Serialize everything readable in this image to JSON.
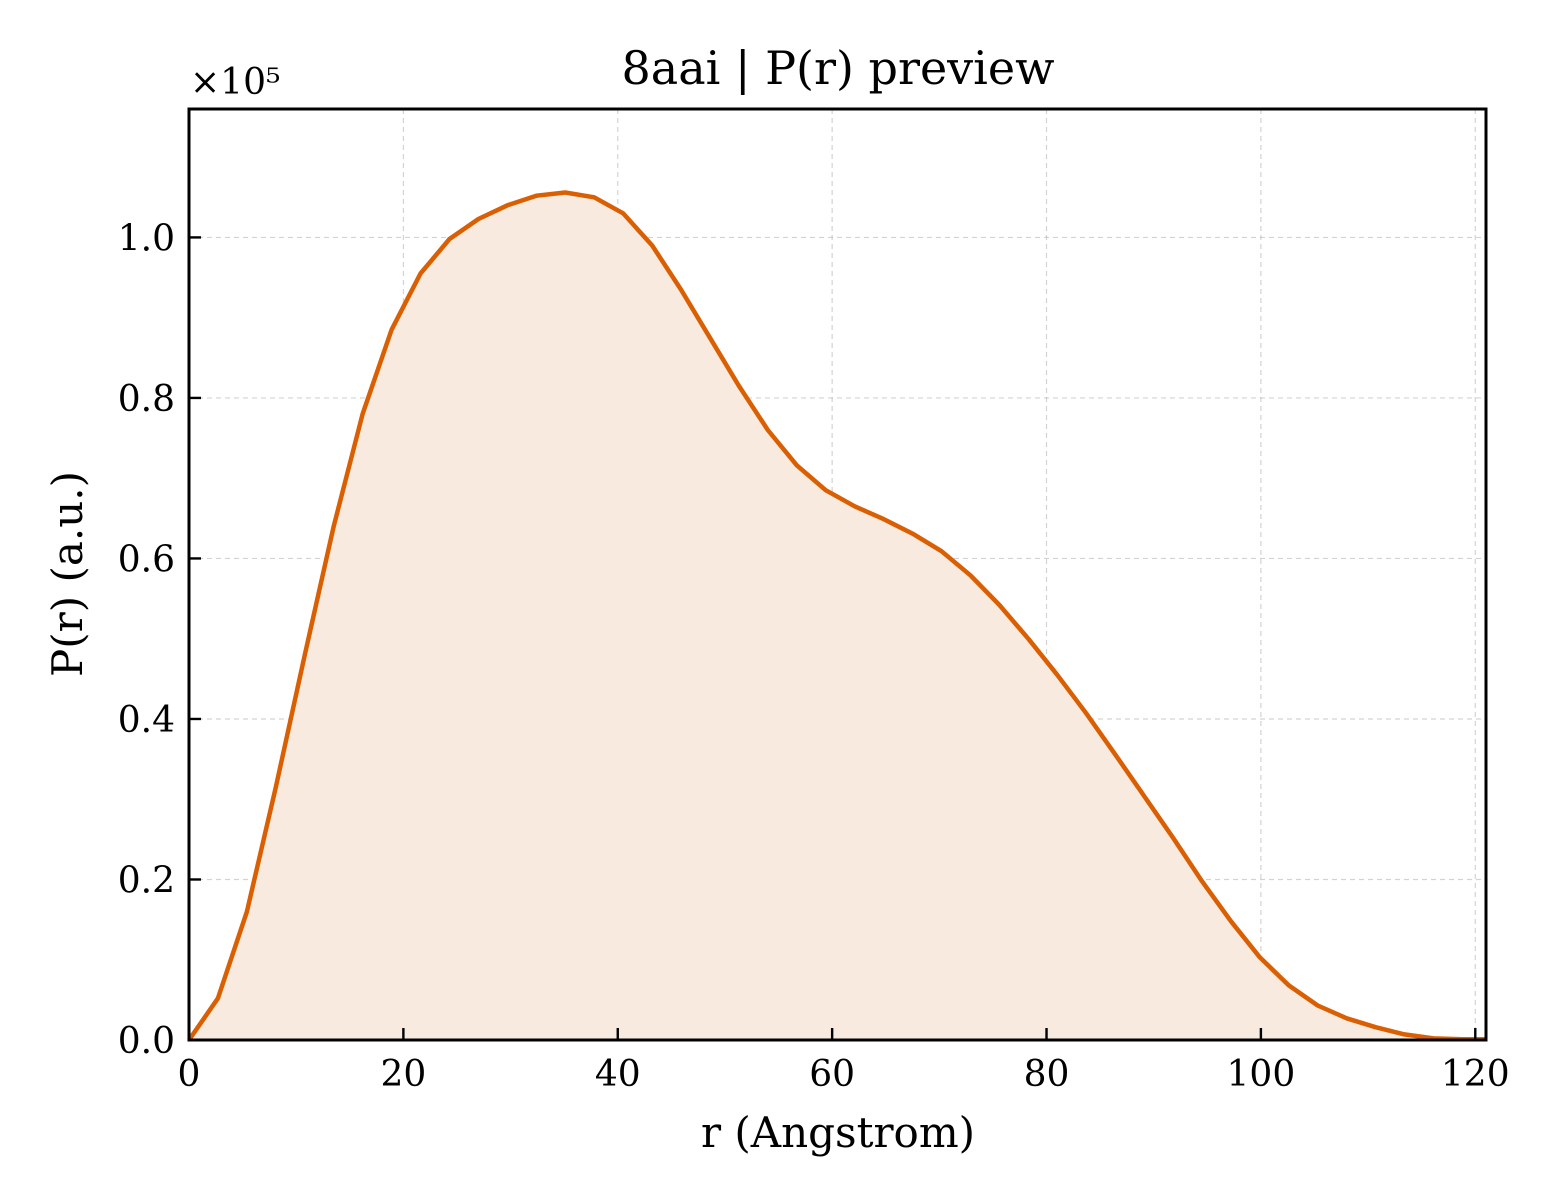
{
  "chart_data": {
    "type": "area",
    "title": "8aai | P(r) preview",
    "xlabel": "r (Angstrom)",
    "ylabel": "P(r) (a.u.)",
    "y_offset_label": "×10⁵",
    "xlim": [
      0,
      121
    ],
    "ylim": [
      0,
      1.16
    ],
    "xticks": [
      0,
      20,
      40,
      60,
      80,
      100,
      120
    ],
    "yticks": [
      0.0,
      0.2,
      0.4,
      0.6,
      0.8,
      1.0
    ],
    "xtick_labels": [
      "0",
      "20",
      "40",
      "60",
      "80",
      "100",
      "120"
    ],
    "ytick_labels": [
      "0.0",
      "0.2",
      "0.4",
      "0.6",
      "0.8",
      "1.0"
    ],
    "grid": true,
    "line_color": "#d95f02",
    "fill_color": "#f8eadf",
    "series": [
      {
        "x": [
          0,
          2.7,
          5.4,
          8.1,
          10.8,
          13.5,
          16.2,
          18.9,
          21.6,
          24.3,
          27.0,
          29.7,
          32.4,
          35.1,
          37.8,
          40.5,
          43.2,
          45.9,
          48.6,
          51.3,
          54.0,
          56.7,
          59.4,
          62.1,
          64.8,
          67.5,
          70.2,
          72.9,
          75.6,
          78.3,
          81.0,
          83.7,
          86.4,
          89.1,
          91.8,
          94.5,
          97.2,
          99.9,
          102.6,
          105.3,
          108.0,
          110.7,
          113.4,
          116.1,
          118.8,
          121.0
        ],
        "values": [
          0.0,
          0.052,
          0.16,
          0.315,
          0.48,
          0.64,
          0.78,
          0.885,
          0.955,
          0.998,
          1.023,
          1.04,
          1.052,
          1.056,
          1.05,
          1.03,
          0.99,
          0.935,
          0.875,
          0.815,
          0.76,
          0.716,
          0.685,
          0.665,
          0.649,
          0.631,
          0.609,
          0.579,
          0.542,
          0.5,
          0.455,
          0.407,
          0.356,
          0.304,
          0.252,
          0.198,
          0.148,
          0.103,
          0.068,
          0.043,
          0.027,
          0.016,
          0.007,
          0.002,
          0.001,
          0.001
        ]
      }
    ]
  }
}
